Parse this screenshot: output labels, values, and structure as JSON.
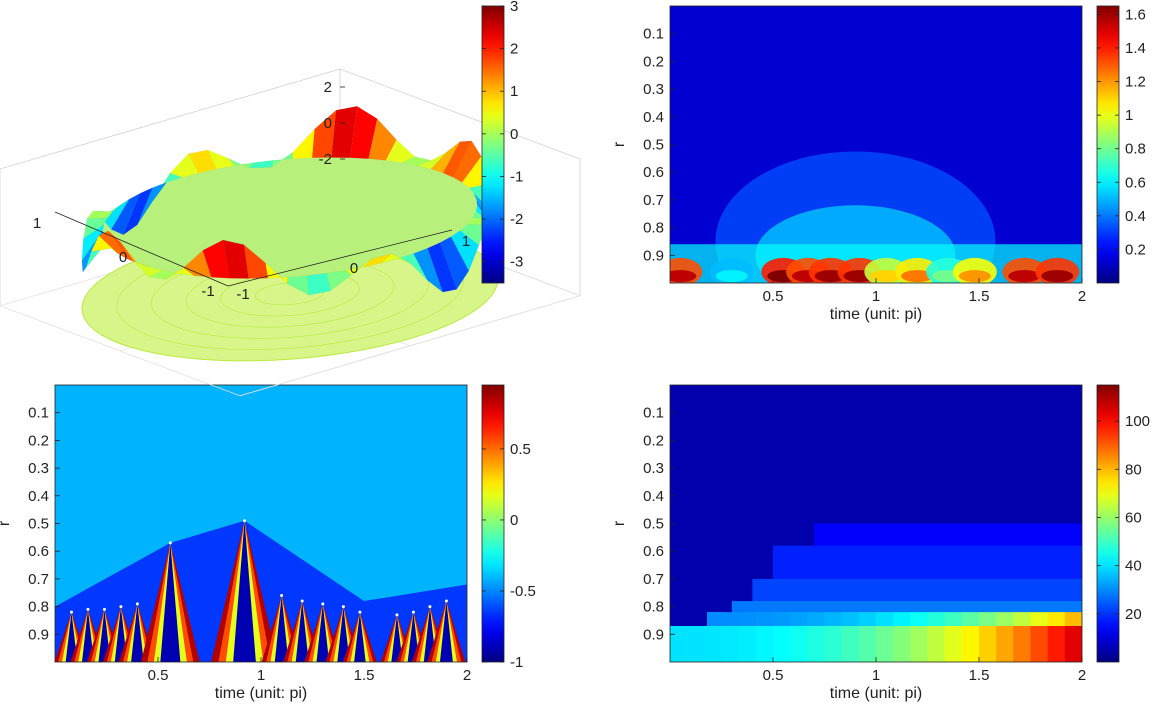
{
  "chart_data": [
    {
      "type": "surface3d",
      "zticks": [
        "2",
        "0",
        "-2"
      ],
      "xticks": [
        "1",
        "0",
        "-1"
      ],
      "yticks": [
        "-1",
        "0",
        "1"
      ],
      "zlim": [
        -3.5,
        3
      ],
      "colorbar": {
        "ticks": [
          "3",
          "2",
          "1",
          "0",
          "-1",
          "-2",
          "-3"
        ],
        "range": [
          -3.5,
          3
        ]
      }
    },
    {
      "type": "heatmap",
      "xlabel": "time (unit: pi)",
      "ylabel": "r",
      "xticks": [
        "0.5",
        "1",
        "1.5",
        "2"
      ],
      "yticks": [
        "0.1",
        "0.2",
        "0.3",
        "0.4",
        "0.5",
        "0.6",
        "0.7",
        "0.8",
        "0.9"
      ],
      "xlim": [
        0,
        2
      ],
      "ylim": [
        0,
        1
      ],
      "colorbar": {
        "ticks": [
          "1.6",
          "1.4",
          "1.2",
          "1",
          "0.8",
          "0.6",
          "0.4",
          "0.2"
        ],
        "range": [
          0,
          1.65
        ]
      },
      "bands": [
        {
          "x": 0.05,
          "v": 1.55
        },
        {
          "x": 0.3,
          "v": 0.6
        },
        {
          "x": 0.55,
          "v": 1.65
        },
        {
          "x": 0.67,
          "v": 1.55
        },
        {
          "x": 0.78,
          "v": 1.6
        },
        {
          "x": 0.92,
          "v": 1.6
        },
        {
          "x": 1.05,
          "v": 1.1
        },
        {
          "x": 1.2,
          "v": 1.25
        },
        {
          "x": 1.35,
          "v": 0.8
        },
        {
          "x": 1.48,
          "v": 1.2
        },
        {
          "x": 1.72,
          "v": 1.55
        },
        {
          "x": 1.88,
          "v": 1.6
        }
      ]
    },
    {
      "type": "heatmap",
      "xlabel": "time (unit: pi)",
      "ylabel": "r",
      "xticks": [
        "0.5",
        "1",
        "1.5",
        "2"
      ],
      "yticks": [
        "0.1",
        "0.2",
        "0.3",
        "0.4",
        "0.5",
        "0.6",
        "0.7",
        "0.8",
        "0.9"
      ],
      "xlim": [
        0,
        2
      ],
      "ylim": [
        0,
        1
      ],
      "colorbar": {
        "ticks": [
          "0.5",
          "0",
          "-0.5",
          "-1"
        ],
        "range": [
          -1,
          0.95
        ]
      },
      "background_value": -0.62,
      "peaks": [
        {
          "t": 0.08,
          "r": 0.82
        },
        {
          "t": 0.16,
          "r": 0.81
        },
        {
          "t": 0.24,
          "r": 0.81
        },
        {
          "t": 0.32,
          "r": 0.8
        },
        {
          "t": 0.4,
          "r": 0.79
        },
        {
          "t": 0.56,
          "r": 0.57
        },
        {
          "t": 0.92,
          "r": 0.49
        },
        {
          "t": 1.1,
          "r": 0.76
        },
        {
          "t": 1.2,
          "r": 0.78
        },
        {
          "t": 1.3,
          "r": 0.79
        },
        {
          "t": 1.4,
          "r": 0.8
        },
        {
          "t": 1.48,
          "r": 0.82
        },
        {
          "t": 1.66,
          "r": 0.83
        },
        {
          "t": 1.74,
          "r": 0.82
        },
        {
          "t": 1.82,
          "r": 0.8
        },
        {
          "t": 1.9,
          "r": 0.78
        }
      ]
    },
    {
      "type": "heatmap",
      "xlabel": "time (unit: pi)",
      "ylabel": "r",
      "xticks": [
        "0.5",
        "1",
        "1.5",
        "2"
      ],
      "yticks": [
        "0.1",
        "0.2",
        "0.3",
        "0.4",
        "0.5",
        "0.6",
        "0.7",
        "0.8",
        "0.9"
      ],
      "xlim": [
        0,
        2
      ],
      "ylim": [
        0,
        1
      ],
      "colorbar": {
        "ticks": [
          "100",
          "80",
          "60",
          "40",
          "20"
        ],
        "range": [
          0,
          115
        ]
      },
      "base_value": 5,
      "steps": [
        {
          "r": 0.5,
          "t": 0.7,
          "v": 14
        },
        {
          "r": 0.58,
          "t": 0.5,
          "v": 18
        },
        {
          "r": 0.7,
          "t": 0.4,
          "v": 22
        },
        {
          "r": 0.78,
          "t": 0.3,
          "v": 28
        },
        {
          "r": 0.85,
          "t": 0.18,
          "v": 34
        },
        {
          "r": 0.92,
          "t": 0.0,
          "v": 40
        }
      ]
    }
  ]
}
